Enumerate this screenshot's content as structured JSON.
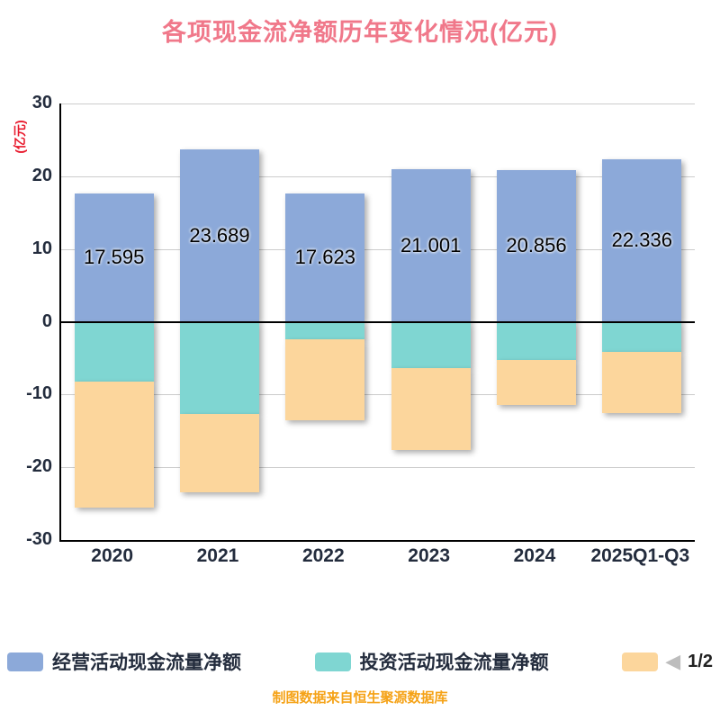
{
  "title": "各项现金流净额历年变化情况(亿元)",
  "y_axis_label": "(亿元)",
  "footer": "制图数据来自恒生聚源数据库",
  "legend": {
    "items": [
      {
        "label": "经营活动现金流量净额",
        "color": "#8ca9d9"
      },
      {
        "label": "投资活动现金流量净额",
        "color": "#7fd6d2"
      },
      {
        "label": "",
        "color": "#fcd69c"
      }
    ],
    "pager": {
      "prev_icon": "◀",
      "page": "1/2"
    }
  },
  "chart_data": {
    "type": "bar",
    "stacked": true,
    "title": "各项现金流净额历年变化情况(亿元)",
    "ylabel": "(亿元)",
    "ylim": [
      -30,
      30
    ],
    "yticks": [
      30,
      20,
      10,
      0,
      -10,
      -20,
      -30
    ],
    "grid": true,
    "legend_position": "bottom",
    "categories": [
      "2020",
      "2021",
      "2022",
      "2023",
      "2024",
      "2025Q1-Q3"
    ],
    "series": [
      {
        "name": "经营活动现金流量净额",
        "color": "#8ca9d9",
        "values": [
          17.595,
          23.689,
          17.623,
          21.001,
          20.856,
          22.336
        ],
        "data_labels": [
          "17.595",
          "23.689",
          "17.623",
          "21.001",
          "20.856",
          "22.336"
        ]
      },
      {
        "name": "投资活动现金流量净额",
        "color": "#7fd6d2",
        "values": [
          -8.2,
          -12.7,
          -2.4,
          -6.4,
          -5.3,
          -4.2
        ]
      },
      {
        "name": "",
        "color": "#fcd69c",
        "values": [
          -17.3,
          -10.8,
          -11.1,
          -11.2,
          -6.2,
          -8.3
        ]
      }
    ]
  }
}
